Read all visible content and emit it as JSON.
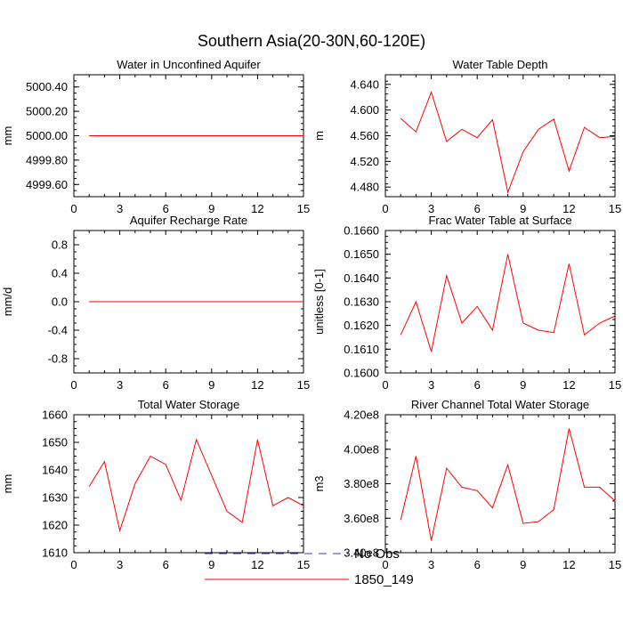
{
  "figure_title": "Southern Asia(20-30N,60-120E)",
  "legend": {
    "entries": [
      {
        "label": "No Obs",
        "color": "#3b3bd1",
        "dash": true
      },
      {
        "label": "1850_149",
        "color": "#ff0000",
        "dash": false
      }
    ]
  },
  "chart_data": [
    {
      "type": "line",
      "title": "Water in Unconfined Aquifer",
      "ylabel": "mm",
      "xlim": [
        0,
        15
      ],
      "xticks": [
        0,
        3,
        6,
        9,
        12,
        15
      ],
      "ylim": [
        4999.5,
        5000.5
      ],
      "yticks": [
        4999.6,
        4999.8,
        5000.0,
        5000.2,
        5000.4
      ],
      "ytick_labels": [
        "4999.60",
        "4999.80",
        "5000.00",
        "5000.20",
        "5000.40"
      ],
      "series": [
        {
          "name": "1850_149",
          "color": "#ff0000",
          "x": [
            1,
            2,
            3,
            4,
            5,
            6,
            7,
            8,
            9,
            10,
            11,
            12,
            13,
            14,
            15
          ],
          "values": [
            5000,
            5000,
            5000,
            5000,
            5000,
            5000,
            5000,
            5000,
            5000,
            5000,
            5000,
            5000,
            5000,
            5000,
            5000
          ]
        }
      ]
    },
    {
      "type": "line",
      "title": "Water Table Depth",
      "ylabel": "m",
      "xlim": [
        0,
        15
      ],
      "xticks": [
        0,
        3,
        6,
        9,
        12,
        15
      ],
      "ylim": [
        4.465,
        4.655
      ],
      "yticks": [
        4.48,
        4.52,
        4.56,
        4.6,
        4.64
      ],
      "ytick_labels": [
        "4.480",
        "4.520",
        "4.560",
        "4.600",
        "4.640"
      ],
      "series": [
        {
          "name": "1850_149",
          "color": "#ff0000",
          "x": [
            1,
            2,
            3,
            4,
            5,
            6,
            7,
            8,
            9,
            10,
            11,
            12,
            13,
            14,
            15
          ],
          "values": [
            4.587,
            4.566,
            4.628,
            4.551,
            4.57,
            4.557,
            4.585,
            4.472,
            4.535,
            4.57,
            4.586,
            4.505,
            4.573,
            4.557,
            4.559
          ]
        }
      ]
    },
    {
      "type": "line",
      "title": "Aquifer Recharge Rate",
      "ylabel": "mm/d",
      "xlim": [
        0,
        15
      ],
      "xticks": [
        0,
        3,
        6,
        9,
        12,
        15
      ],
      "ylim": [
        -1.0,
        1.0
      ],
      "yticks": [
        -0.8,
        -0.4,
        0.0,
        0.4,
        0.8
      ],
      "ytick_labels": [
        "-0.8",
        "-0.4",
        "0.0",
        "0.4",
        "0.8"
      ],
      "series": [
        {
          "name": "1850_149",
          "color": "#ff0000",
          "x": [
            1,
            2,
            3,
            4,
            5,
            6,
            7,
            8,
            9,
            10,
            11,
            12,
            13,
            14,
            15
          ],
          "values": [
            0,
            0,
            0,
            0,
            0,
            0,
            0,
            0,
            0,
            0,
            0,
            0,
            0,
            0,
            0
          ]
        }
      ]
    },
    {
      "type": "line",
      "title": "Frac Water Table at Surface",
      "ylabel": "unitless [0-1]",
      "xlim": [
        0,
        15
      ],
      "xticks": [
        0,
        3,
        6,
        9,
        12,
        15
      ],
      "ylim": [
        0.16,
        0.166
      ],
      "yticks": [
        0.16,
        0.161,
        0.162,
        0.163,
        0.164,
        0.165,
        0.166
      ],
      "ytick_labels": [
        "0.1600",
        "0.1610",
        "0.1620",
        "0.1630",
        "0.1640",
        "0.1650",
        "0.1660"
      ],
      "series": [
        {
          "name": "1850_149",
          "color": "#ff0000",
          "x": [
            1,
            2,
            3,
            4,
            5,
            6,
            7,
            8,
            9,
            10,
            11,
            12,
            13,
            14,
            15
          ],
          "values": [
            0.1616,
            0.163,
            0.1609,
            0.1641,
            0.1621,
            0.1628,
            0.1618,
            0.165,
            0.1621,
            0.1618,
            0.1617,
            0.1646,
            0.1616,
            0.1621,
            0.1624
          ]
        }
      ]
    },
    {
      "type": "line",
      "title": "Total Water Storage",
      "ylabel": "mm",
      "xlim": [
        0,
        15
      ],
      "xticks": [
        0,
        3,
        6,
        9,
        12,
        15
      ],
      "ylim": [
        1610,
        1660
      ],
      "yticks": [
        1610,
        1620,
        1630,
        1640,
        1650,
        1660
      ],
      "ytick_labels": [
        "1610",
        "1620",
        "1630",
        "1640",
        "1650",
        "1660"
      ],
      "series": [
        {
          "name": "1850_149",
          "color": "#ff0000",
          "x": [
            1,
            2,
            3,
            4,
            5,
            6,
            7,
            8,
            9,
            10,
            11,
            12,
            13,
            14,
            15
          ],
          "values": [
            1634,
            1643,
            1618,
            1635,
            1645,
            1642,
            1629,
            1651,
            1638,
            1625,
            1621,
            1651,
            1627,
            1630,
            1627
          ]
        }
      ]
    },
    {
      "type": "line",
      "title": "River Channel Total Water Storage",
      "ylabel": "m3",
      "xlim": [
        0,
        15
      ],
      "xticks": [
        0,
        3,
        6,
        9,
        12,
        15
      ],
      "ylim": [
        340000000.0,
        420000000.0
      ],
      "yticks": [
        340000000.0,
        360000000.0,
        380000000.0,
        400000000.0,
        420000000.0
      ],
      "ytick_labels": [
        "3.40e8",
        "3.60e8",
        "3.80e8",
        "4.00e8",
        "4.20e8"
      ],
      "series": [
        {
          "name": "1850_149",
          "color": "#ff0000",
          "x": [
            1,
            2,
            3,
            4,
            5,
            6,
            7,
            8,
            9,
            10,
            11,
            12,
            13,
            14,
            15
          ],
          "values": [
            359000000.0,
            396000000.0,
            347000000.0,
            389000000.0,
            378000000.0,
            376000000.0,
            366000000.0,
            391000000.0,
            357000000.0,
            358000000.0,
            365000000.0,
            412000000.0,
            378000000.0,
            378000000.0,
            370000000.0
          ]
        }
      ]
    }
  ]
}
